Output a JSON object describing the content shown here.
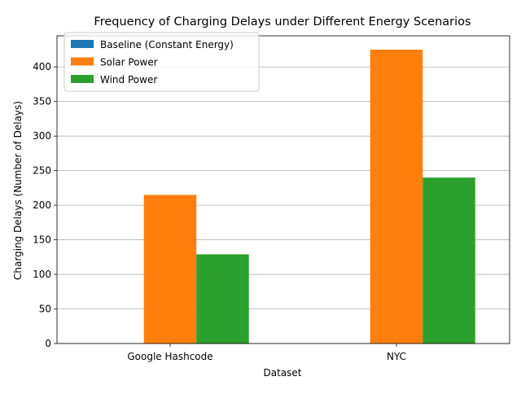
{
  "chart_data": {
    "type": "bar",
    "title": "Frequency of Charging Delays under Different Energy Scenarios",
    "xlabel": "Dataset",
    "ylabel": "Charging Delays (Number of Delays)",
    "categories": [
      "Google Hashcode",
      "NYC"
    ],
    "series": [
      {
        "name": "Baseline (Constant Energy)",
        "values": [
          0,
          0
        ],
        "color": "#1f77b4"
      },
      {
        "name": "Solar Power",
        "values": [
          215,
          425
        ],
        "color": "#ff7f0e"
      },
      {
        "name": "Wind Power",
        "values": [
          129,
          240
        ],
        "color": "#2ca02c"
      }
    ],
    "ylim": [
      0,
      445
    ],
    "yticks": [
      0,
      50,
      100,
      150,
      200,
      250,
      300,
      350,
      400
    ],
    "grid": "y-major",
    "legend": "top-left"
  }
}
